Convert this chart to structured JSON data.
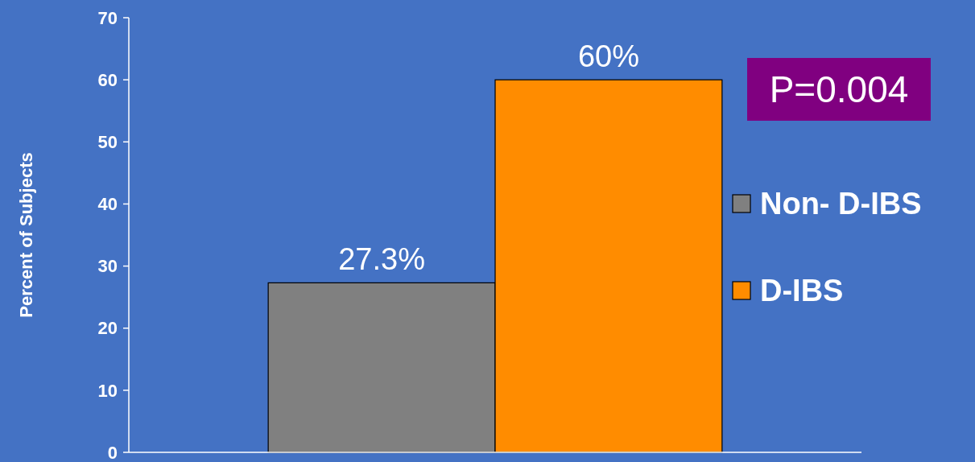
{
  "chart_data": {
    "type": "bar",
    "categories": [
      null
    ],
    "series": [
      {
        "name": "Non- D-IBS",
        "color": "#808080",
        "values": [
          27.3
        ],
        "value_labels": [
          "27.3%"
        ]
      },
      {
        "name": "D-IBS",
        "color": "#ff8c00",
        "values": [
          60
        ],
        "value_labels": [
          "60%"
        ]
      }
    ],
    "ylabel": "Percent of Subjects",
    "ylim": [
      0,
      70
    ],
    "yticks": [
      0,
      10,
      20,
      30,
      40,
      50,
      60,
      70
    ],
    "annotations": [
      "P=0.004"
    ],
    "legend": "right",
    "grid": false
  }
}
